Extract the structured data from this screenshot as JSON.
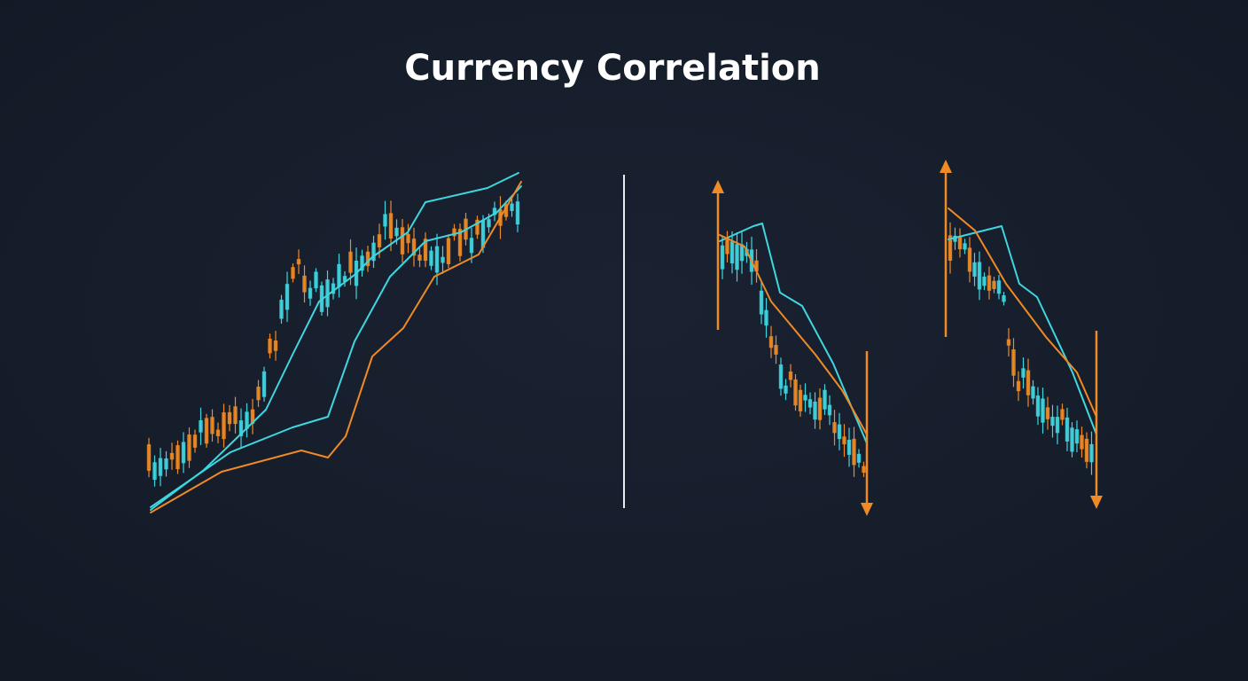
{
  "header": {
    "title": "Currency Correlation"
  }
}
